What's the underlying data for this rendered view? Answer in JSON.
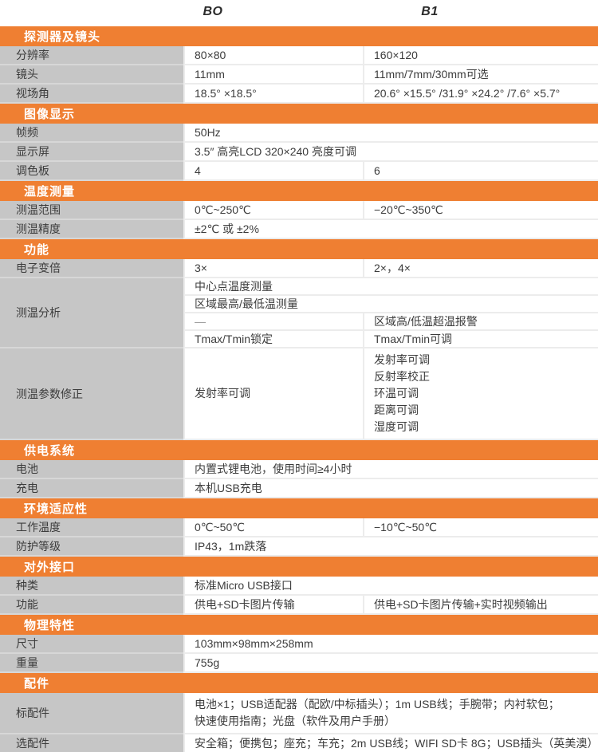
{
  "theme": {
    "accent_orange": "#EF7F32",
    "label_gray": "#C6C6C6",
    "text_color": "#3C3C3C"
  },
  "columns": {
    "model_1": "BO",
    "model_2": "B1"
  },
  "sections": [
    {
      "title": "探测器及镜头",
      "rows": [
        {
          "label": "分辨率",
          "values": [
            "80×80",
            "160×120"
          ]
        },
        {
          "label": "镜头",
          "values": [
            "11mm",
            "11mm/7mm/30mm可选"
          ]
        },
        {
          "label": "视场角",
          "values": [
            "18.5° ×18.5°",
            "20.6° ×15.5° /31.9° ×24.2° /7.6° ×5.7°"
          ]
        }
      ]
    },
    {
      "title": "图像显示",
      "rows": [
        {
          "label": "帧频",
          "value": "50Hz"
        },
        {
          "label": "显示屏",
          "value": "3.5″ 高亮LCD 320×240  亮度可调"
        },
        {
          "label": "调色板",
          "values": [
            "4",
            "6"
          ]
        }
      ]
    },
    {
      "title": "温度测量",
      "rows": [
        {
          "label": "测温范围",
          "values": [
            "0℃~250℃",
            "−20℃~350℃"
          ]
        },
        {
          "label": "测温精度",
          "value": "±2℃ 或 ±2%"
        }
      ]
    },
    {
      "title": "功能",
      "rows": [
        {
          "label": "电子变倍",
          "values": [
            "3×",
            "2×，4×"
          ]
        },
        {
          "label": "测温分析",
          "subrows": [
            {
              "value": "中心点温度测量"
            },
            {
              "value": "区域最高/最低温测量"
            },
            {
              "values": [
                "—",
                "区域高/低温超温报警"
              ]
            },
            {
              "values": [
                "Tmax/Tmin锁定",
                "Tmax/Tmin可调"
              ]
            }
          ]
        },
        {
          "label": "测温参数修正",
          "left": [
            "发射率可调"
          ],
          "right": [
            "发射率可调",
            "反射率校正",
            "环温可调",
            "距离可调",
            "湿度可调"
          ]
        }
      ]
    },
    {
      "title": "供电系统",
      "rows": [
        {
          "label": "电池",
          "value": "内置式锂电池，使用时间≥4小时"
        },
        {
          "label": "充电",
          "value": "本机USB充电"
        }
      ]
    },
    {
      "title": "环境适应性",
      "rows": [
        {
          "label": "工作温度",
          "values": [
            "0℃~50℃",
            "−10℃~50℃"
          ]
        },
        {
          "label": "防护等级",
          "value": "IP43，1m跌落"
        }
      ]
    },
    {
      "title": "对外接口",
      "rows": [
        {
          "label": "种类",
          "value": "标准Micro USB接口"
        },
        {
          "label": "功能",
          "values": [
            "供电+SD卡图片传输",
            "供电+SD卡图片传输+实时视频输出"
          ]
        }
      ]
    },
    {
      "title": "物理特性",
      "rows": [
        {
          "label": "尺寸",
          "value": "103mm×98mm×258mm"
        },
        {
          "label": "重量",
          "value": "755g"
        }
      ]
    },
    {
      "title": "配件",
      "rows": [
        {
          "label": "标配件",
          "lines": [
            "电池×1；USB适配器（配欧/中标插头）；1m USB线；手腕带；内衬软包；",
            "快速使用指南；光盘（软件及用户手册）"
          ]
        },
        {
          "label": "选配件",
          "value": "安全箱；便携包；座充；车充；2m USB线；WIFI SD卡 8G；USB插头（英美澳）"
        }
      ]
    }
  ]
}
